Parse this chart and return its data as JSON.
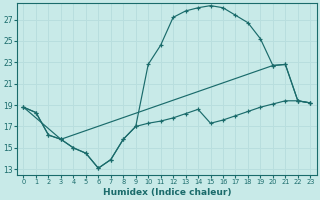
{
  "xlabel": "Humidex (Indice chaleur)",
  "bg_color": "#c8eae8",
  "line_color": "#1a6b6b",
  "grid_color": "#b8dede",
  "xlim": [
    -0.5,
    23.5
  ],
  "ylim": [
    12.5,
    28.5
  ],
  "yticks": [
    13,
    15,
    17,
    19,
    21,
    23,
    25,
    27
  ],
  "xticks": [
    0,
    1,
    2,
    3,
    4,
    5,
    6,
    7,
    8,
    9,
    10,
    11,
    12,
    13,
    14,
    15,
    16,
    17,
    18,
    19,
    20,
    21,
    22,
    23
  ],
  "line1_x": [
    0,
    1,
    2,
    3,
    4,
    5,
    6,
    7,
    8,
    9,
    10,
    11,
    12,
    13,
    14,
    15,
    16,
    17,
    18,
    19,
    20,
    21,
    22,
    23
  ],
  "line1_y": [
    18.8,
    18.3,
    16.2,
    15.8,
    15.0,
    14.5,
    13.1,
    13.9,
    15.8,
    17.0,
    22.8,
    24.6,
    27.2,
    27.8,
    28.1,
    28.3,
    28.1,
    27.4,
    26.7,
    25.2,
    22.7,
    22.8,
    19.4,
    19.2
  ],
  "line2_x": [
    0,
    1,
    2,
    3,
    4,
    5,
    6,
    7,
    8,
    9,
    10,
    11,
    12,
    13,
    14,
    15,
    16,
    17,
    18,
    19,
    20,
    21,
    22,
    23
  ],
  "line2_y": [
    18.8,
    18.3,
    16.2,
    15.8,
    15.0,
    14.5,
    13.1,
    13.9,
    15.8,
    17.0,
    17.3,
    17.5,
    17.8,
    18.2,
    18.6,
    17.3,
    17.6,
    18.0,
    18.4,
    18.8,
    19.1,
    19.4,
    19.4,
    19.2
  ],
  "line3_x": [
    0,
    3,
    20,
    21,
    22,
    23
  ],
  "line3_y": [
    18.8,
    15.8,
    22.7,
    22.8,
    19.4,
    19.2
  ]
}
